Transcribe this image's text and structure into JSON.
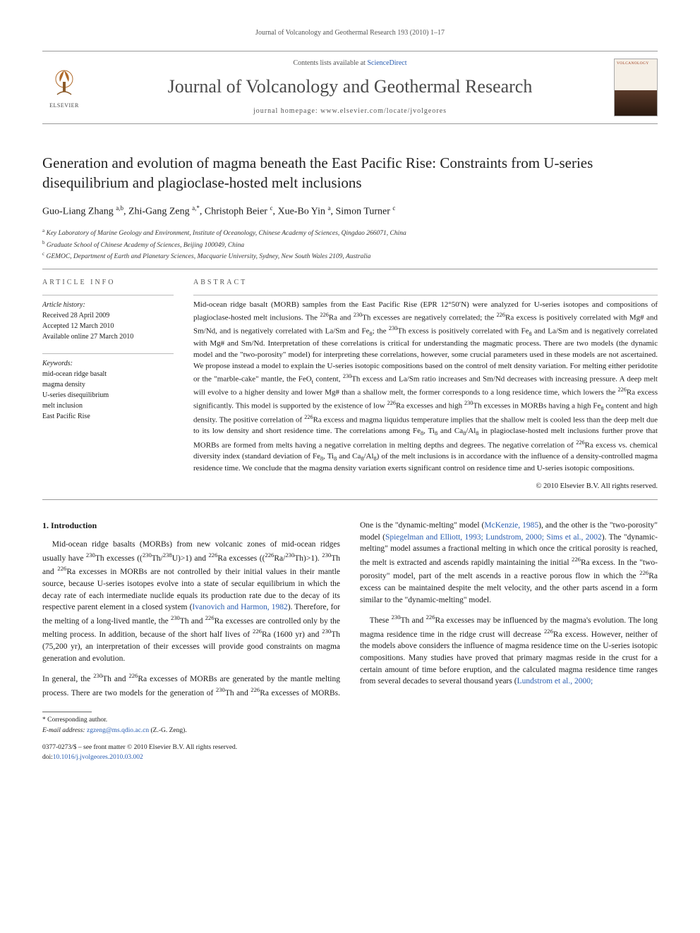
{
  "running_header": "Journal of Volcanology and Geothermal Research 193 (2010) 1–17",
  "masthead": {
    "contents_prefix": "Contents lists available at ",
    "contents_link": "ScienceDirect",
    "journal_name": "Journal of Volcanology and Geothermal Research",
    "homepage_prefix": "journal homepage: ",
    "homepage_url": "www.elsevier.com/locate/jvolgeores",
    "elsevier_word": "ELSEVIER",
    "cover_word": "VOLCANOLOGY"
  },
  "article": {
    "title": "Generation and evolution of magma beneath the East Pacific Rise: Constraints from U-series disequilibrium and plagioclase-hosted melt inclusions",
    "authors_html": "Guo-Liang Zhang <span class='sup'>a,b</span>, Zhi-Gang Zeng <span class='sup'>a,</span><span class='sup star'>*</span>, Christoph Beier <span class='sup'>c</span>, Xue-Bo Yin <span class='sup'>a</span>, Simon Turner <span class='sup'>c</span>",
    "affiliations": [
      {
        "key": "a",
        "text": "Key Laboratory of Marine Geology and Environment, Institute of Oceanology, Chinese Academy of Sciences, Qingdao 266071, China"
      },
      {
        "key": "b",
        "text": "Graduate School of Chinese Academy of Sciences, Beijing 100049, China"
      },
      {
        "key": "c",
        "text": "GEMOC, Department of Earth and Planetary Sciences, Macquarie University, Sydney, New South Wales 2109, Australia"
      }
    ]
  },
  "article_info": {
    "heading": "article info",
    "history_label": "Article history:",
    "history": [
      "Received 28 April 2009",
      "Accepted 12 March 2010",
      "Available online 27 March 2010"
    ],
    "keywords_label": "Keywords:",
    "keywords": [
      "mid-ocean ridge basalt",
      "magma density",
      "U-series disequilibrium",
      "melt inclusion",
      "East Pacific Rise"
    ]
  },
  "abstract": {
    "heading": "abstract",
    "text": "Mid-ocean ridge basalt (MORB) samples from the East Pacific Rise (EPR 12°50′N) were analyzed for U-series isotopes and compositions of plagioclase-hosted melt inclusions. The 226Ra and 230Th excesses are negatively correlated; the 226Ra excess is positively correlated with Mg# and Sm/Nd, and is negatively correlated with La/Sm and Fe8; the 230Th excess is positively correlated with Fe8 and La/Sm and is negatively correlated with Mg# and Sm/Nd. Interpretation of these correlations is critical for understanding the magmatic process. There are two models (the dynamic model and the \"two-porosity\" model) for interpreting these correlations, however, some crucial parameters used in these models are not ascertained. We propose instead a model to explain the U-series isotopic compositions based on the control of melt density variation. For melting either peridotite or the \"marble-cake\" mantle, the FeOt content, 230Th excess and La/Sm ratio increases and Sm/Nd decreases with increasing pressure. A deep melt will evolve to a higher density and lower Mg# than a shallow melt, the former corresponds to a long residence time, which lowers the 226Ra excess significantly. This model is supported by the existence of low 226Ra excesses and high 230Th excesses in MORBs having a high Fe8 content and high density. The positive correlation of 226Ra excess and magma liquidus temperature implies that the shallow melt is cooled less than the deep melt due to its low density and short residence time. The correlations among Fe8, Ti8 and Ca8/Al8 in plagioclase-hosted melt inclusions further prove that MORBs are formed from melts having a negative correlation in melting depths and degrees. The negative correlation of 226Ra excess vs. chemical diversity index (standard deviation of Fe8, Ti8 and Ca8/Al8) of the melt inclusions is in accordance with the influence of a density-controlled magma residence time. We conclude that the magma density variation exerts significant control on residence time and U-series isotopic compositions.",
    "copyright": "© 2010 Elsevier B.V. All rights reserved."
  },
  "body": {
    "section_heading": "1. Introduction",
    "p1": "Mid-ocean ridge basalts (MORBs) from new volcanic zones of mid-ocean ridges usually have 230Th excesses ((230Th/238U)>1) and 226Ra excesses ((226Ra/230Th)>1). 230Th and 226Ra excesses in MORBs are not controlled by their initial values in their mantle source, because U-series isotopes evolve into a state of secular equilibrium in which the decay rate of each intermediate nuclide equals its production rate due to the decay of its respective parent element in a closed system (",
    "p1_link": "Ivanovich and Harmon, 1982",
    "p1_tail": "). Therefore, for the melting of a long-lived mantle, the 230Th and 226Ra excesses are controlled only by the melting process. In addition, because of the short half lives of 226Ra (1600 yr) and 230Th (75,200 yr), an interpretation of their excesses will provide good constraints on magma generation and evolution.",
    "p2_lead": "In general, the 230Th and 226Ra excesses of MORBs are generated by the mantle melting process. There are two models for the generation of 230Th and 226Ra excesses of MORBs. One is the \"dynamic-melting\" model (",
    "p2_link1": "McKenzie, 1985",
    "p2_mid1": "), and the other is the \"two-porosity\" model (",
    "p2_link2": "Spiegelman and Elliott, 1993; Lundstrom, 2000; Sims et al., 2002",
    "p2_mid2": "). The \"dynamic-melting\" model assumes a fractional melting in which once the critical porosity is reached, the melt is extracted and ascends rapidly maintaining the initial 226Ra excess. In the \"two-porosity\" model, part of the melt ascends in a reactive porous flow in which the 226Ra excess can be maintained despite the melt velocity, and the other parts ascend in a form similar to the \"dynamic-melting\" model.",
    "p3_lead": "These 230Th and 226Ra excesses may be influenced by the magma's evolution. The long magma residence time in the ridge crust will decrease 226Ra excess. However, neither of the models above considers the influence of magma residence time on the U-series isotopic compositions. Many studies have proved that primary magmas reside in the crust for a certain amount of time before eruption, and the calculated magma residence time ranges from several decades to several thousand years (",
    "p3_link": "Lundstrom et al., 2000;"
  },
  "footer": {
    "corr_label": "* Corresponding author.",
    "email_label": "E-mail address: ",
    "email": "zgzeng@ms.qdio.ac.cn",
    "email_tail": " (Z.-G. Zeng).",
    "issn": "0377-0273/$ – see front matter © 2010 Elsevier B.V. All rights reserved.",
    "doi_label": "doi:",
    "doi": "10.1016/j.jvolgeores.2010.03.002"
  },
  "colors": {
    "link": "#2a5db0",
    "text": "#1a1a1a",
    "muted": "#555555",
    "rule": "#999999"
  }
}
